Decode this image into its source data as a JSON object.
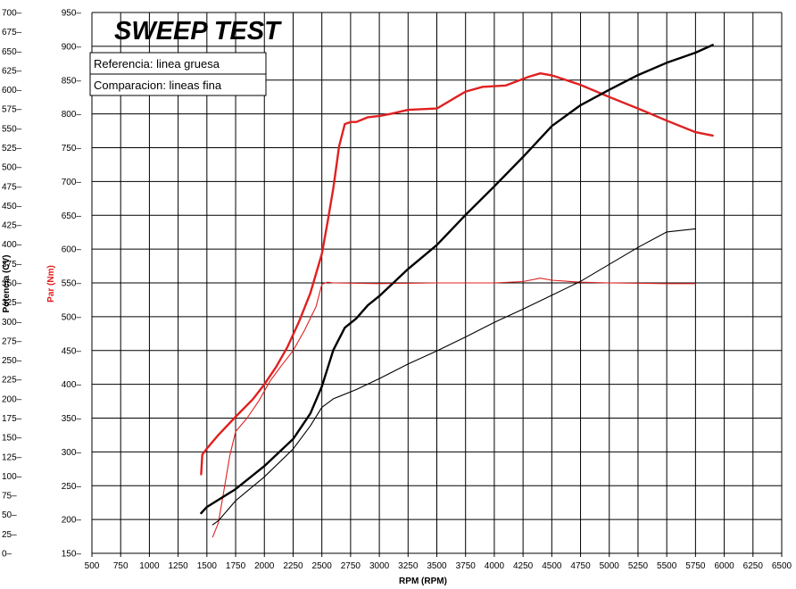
{
  "chart_data": {
    "type": "line",
    "title": "SWEEP TEST",
    "xlabel": "RPM (RPM)",
    "ylabel_left": "Potencia (CV)",
    "ylabel_right": "Par (Nm)",
    "xlim": [
      500,
      6500
    ],
    "ylim_left": [
      0,
      700
    ],
    "ylim_right": [
      150,
      950
    ],
    "x_ticks": [
      500,
      750,
      1000,
      1250,
      1500,
      1750,
      2000,
      2250,
      2500,
      2750,
      3000,
      3250,
      3500,
      3750,
      4000,
      4250,
      4500,
      4750,
      5000,
      5250,
      5500,
      5750,
      6000,
      6250,
      6500
    ],
    "y_ticks_left": [
      0,
      25,
      50,
      75,
      100,
      125,
      150,
      175,
      200,
      225,
      250,
      275,
      300,
      325,
      350,
      375,
      400,
      425,
      450,
      475,
      500,
      525,
      550,
      575,
      600,
      625,
      650,
      675,
      700
    ],
    "y_ticks_right": [
      150,
      200,
      250,
      300,
      350,
      400,
      450,
      500,
      550,
      600,
      650,
      700,
      750,
      800,
      850,
      900,
      950
    ],
    "legend": [
      "Referencia: linea gruesa",
      "Comparacion: lineas fina"
    ],
    "grid": true,
    "series": [
      {
        "name": "Par referencia (Nm)",
        "axis": "right",
        "style": "thick",
        "color": "#e02020",
        "x": [
          1450,
          1460,
          1500,
          1600,
          1750,
          1900,
          2000,
          2100,
          2200,
          2300,
          2400,
          2500,
          2550,
          2600,
          2650,
          2700,
          2750,
          2800,
          2900,
          3000,
          3100,
          3250,
          3500,
          3750,
          3900,
          4100,
          4300,
          4400,
          4500,
          4750,
          5000,
          5250,
          5500,
          5750,
          5900
        ],
        "y": [
          267,
          296,
          305,
          325,
          352,
          378,
          400,
          425,
          455,
          492,
          535,
          593,
          640,
          690,
          752,
          785,
          788,
          788,
          795,
          797,
          800,
          806,
          808,
          833,
          840,
          842,
          855,
          860,
          857,
          843,
          825,
          808,
          790,
          773,
          768
        ]
      },
      {
        "name": "Par comparacion (Nm)",
        "axis": "right",
        "style": "thin",
        "color": "#e02020",
        "x": [
          1550,
          1600,
          1650,
          1700,
          1750,
          1850,
          1950,
          2050,
          2150,
          2250,
          2350,
          2450,
          2500,
          2550,
          2600,
          3000,
          3500,
          4000,
          4250,
          4400,
          4500,
          4750,
          5000,
          5500,
          5750
        ],
        "y": [
          174,
          195,
          245,
          295,
          330,
          350,
          375,
          405,
          428,
          450,
          480,
          515,
          548,
          551,
          550,
          549,
          550,
          550,
          552,
          557,
          554,
          551,
          550,
          549,
          549
        ]
      },
      {
        "name": "Potencia referencia (CV)",
        "axis": "left",
        "style": "thick",
        "color": "#000000",
        "x": [
          1450,
          1500,
          1750,
          2000,
          2250,
          2400,
          2500,
          2600,
          2700,
          2800,
          2900,
          3000,
          3250,
          3500,
          3750,
          4000,
          4250,
          4500,
          4750,
          5000,
          5250,
          5500,
          5750,
          5900
        ],
        "y": [
          52,
          60,
          83,
          113,
          148,
          181,
          216,
          263,
          292,
          304,
          321,
          333,
          368,
          399,
          438,
          475,
          513,
          553,
          580,
          600,
          619,
          635,
          648,
          658
        ]
      },
      {
        "name": "Potencia comparacion (CV)",
        "axis": "left",
        "style": "thin",
        "color": "#000000",
        "x": [
          1550,
          1600,
          1750,
          2000,
          2250,
          2400,
          2500,
          2600,
          2800,
          3000,
          3250,
          3500,
          3750,
          4000,
          4250,
          4500,
          4750,
          5000,
          5250,
          5500,
          5750
        ],
        "y": [
          37,
          42,
          68,
          99,
          135,
          165,
          189,
          200,
          212,
          226,
          245,
          262,
          280,
          299,
          316,
          334,
          352,
          374,
          396,
          416,
          420
        ]
      }
    ]
  }
}
